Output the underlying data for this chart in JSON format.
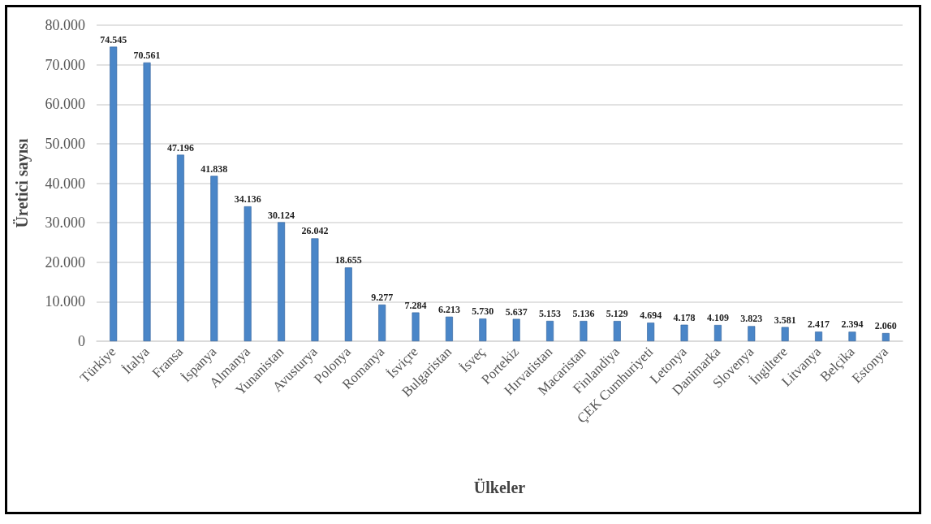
{
  "chart_data": {
    "type": "bar",
    "xlabel": "Ülkeler",
    "ylabel": "Üretici sayısı",
    "categories": [
      "Türkiye",
      "İtalya",
      "Fransa",
      "İspanya",
      "Almanya",
      "Yunanistan",
      "Avusturya",
      "Polonya",
      "Romanya",
      "İsviçre",
      "Bulgaristan",
      "İsveç",
      "Portekiz",
      "Hırvatistan",
      "Macaristan",
      "Finlandiya",
      "ÇEK Cumhuriyeti",
      "Letonya",
      "Danimarka",
      "Slovenya",
      "İngiltere",
      "Litvanya",
      "Belçika",
      "Estonya"
    ],
    "values": [
      74545,
      70561,
      47196,
      41838,
      34136,
      30124,
      26042,
      18655,
      9277,
      7284,
      6213,
      5730,
      5637,
      5153,
      5136,
      5129,
      4694,
      4178,
      4109,
      3823,
      3581,
      2417,
      2394,
      2060
    ],
    "value_labels": [
      "74.545",
      "70.561",
      "47.196",
      "41.838",
      "34.136",
      "30.124",
      "26.042",
      "18.655",
      "9.277",
      "7.284",
      "6.213",
      "5.730",
      "5.637",
      "5.153",
      "5.136",
      "5.129",
      "4.694",
      "4.178",
      "4.109",
      "3.823",
      "3.581",
      "2.417",
      "2.394",
      "2.060"
    ],
    "color": "#4a86c8",
    "ylim": [
      0,
      80000
    ],
    "yticks": [
      {
        "value": 0,
        "label": "0"
      },
      {
        "value": 10000,
        "label": "10.000"
      },
      {
        "value": 20000,
        "label": "20.000"
      },
      {
        "value": 30000,
        "label": "30.000"
      },
      {
        "value": 40000,
        "label": "40.000"
      },
      {
        "value": 50000,
        "label": "50.000"
      },
      {
        "value": 60000,
        "label": "60.000"
      },
      {
        "value": 70000,
        "label": "70.000"
      },
      {
        "value": 80000,
        "label": "80.000"
      }
    ],
    "grid": "y"
  }
}
